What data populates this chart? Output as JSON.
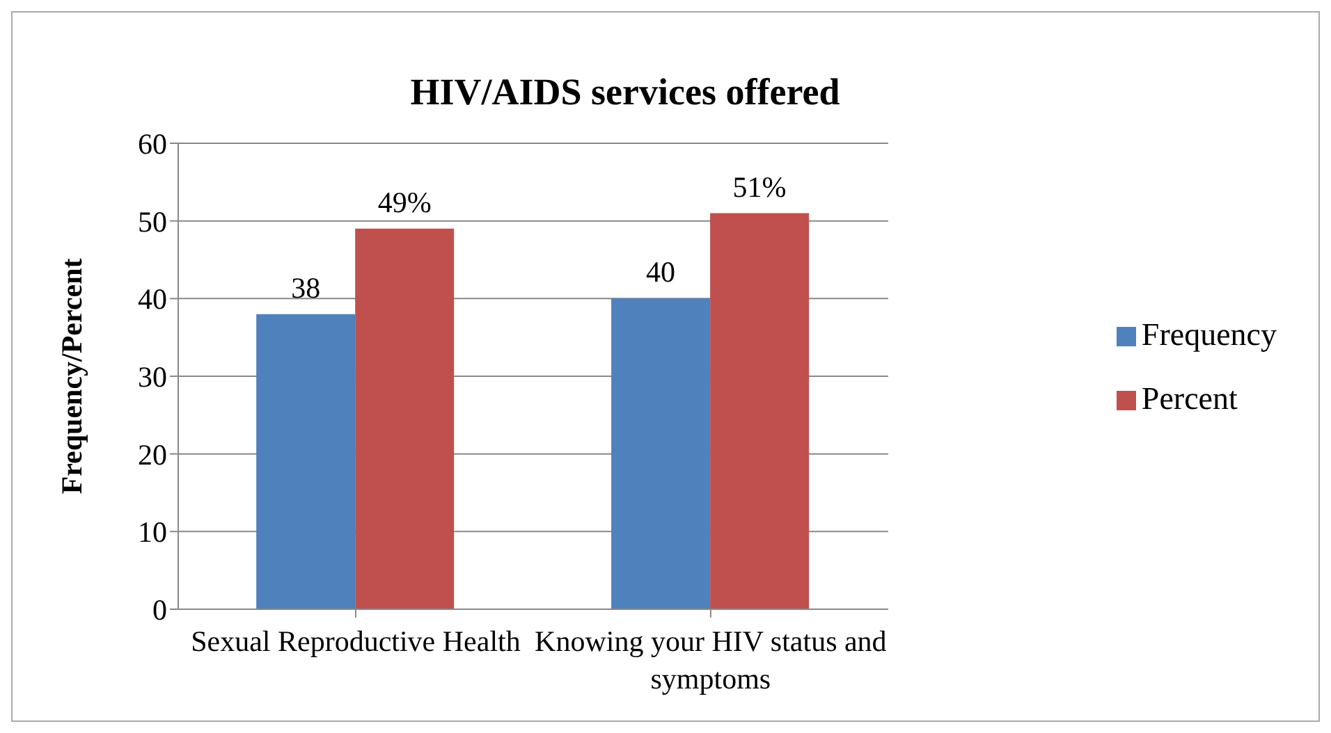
{
  "chart_data": {
    "type": "bar",
    "title": "HIV/AIDS services offered",
    "ylabel": "Frequency/Percent",
    "categories": [
      "Sexual Reproductive Health",
      "Knowing your HIV status and symptoms"
    ],
    "series": [
      {
        "name": "Frequency",
        "color": "#4f81bd",
        "values": [
          38,
          40
        ],
        "value_labels": [
          "38",
          "40"
        ]
      },
      {
        "name": "Percent",
        "color": "#c0504d",
        "values": [
          49,
          51
        ],
        "value_labels": [
          "49%",
          "51%"
        ]
      }
    ],
    "ylim": [
      0,
      60
    ],
    "yticks": [
      0,
      10,
      20,
      30,
      40,
      50,
      60
    ],
    "grid": "y",
    "legend": "right"
  }
}
